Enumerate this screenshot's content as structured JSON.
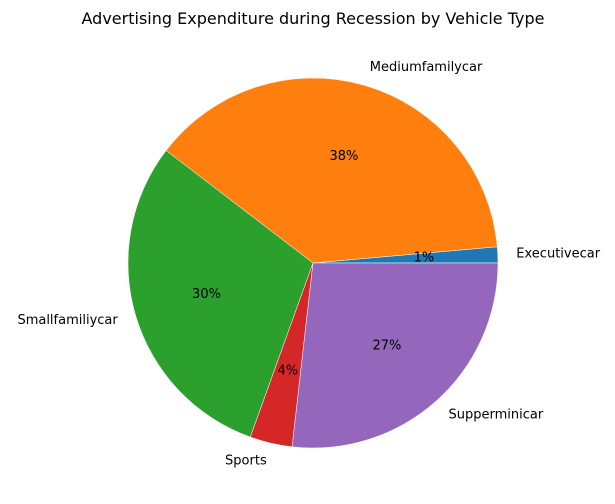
{
  "chart_data": {
    "type": "pie",
    "title": "Advertising Expenditure during Recession by Vehicle Type",
    "start_angle_deg": 0,
    "direction": "counterclockwise",
    "slices": [
      {
        "label": "Executivecar",
        "percent_label": "1%",
        "value": 1.4,
        "color": "#1f77b4"
      },
      {
        "label": "Mediumfamilycar",
        "percent_label": "38%",
        "value": 38.2,
        "color": "#ff7f0e"
      },
      {
        "label": "Smallfamiliycar",
        "percent_label": "30%",
        "value": 29.9,
        "color": "#2ca02c"
      },
      {
        "label": "Sports",
        "percent_label": "4%",
        "value": 3.7,
        "color": "#d62728"
      },
      {
        "label": "Supperminicar",
        "percent_label": "27%",
        "value": 26.8,
        "color": "#9467bd"
      }
    ],
    "legend": "none"
  }
}
